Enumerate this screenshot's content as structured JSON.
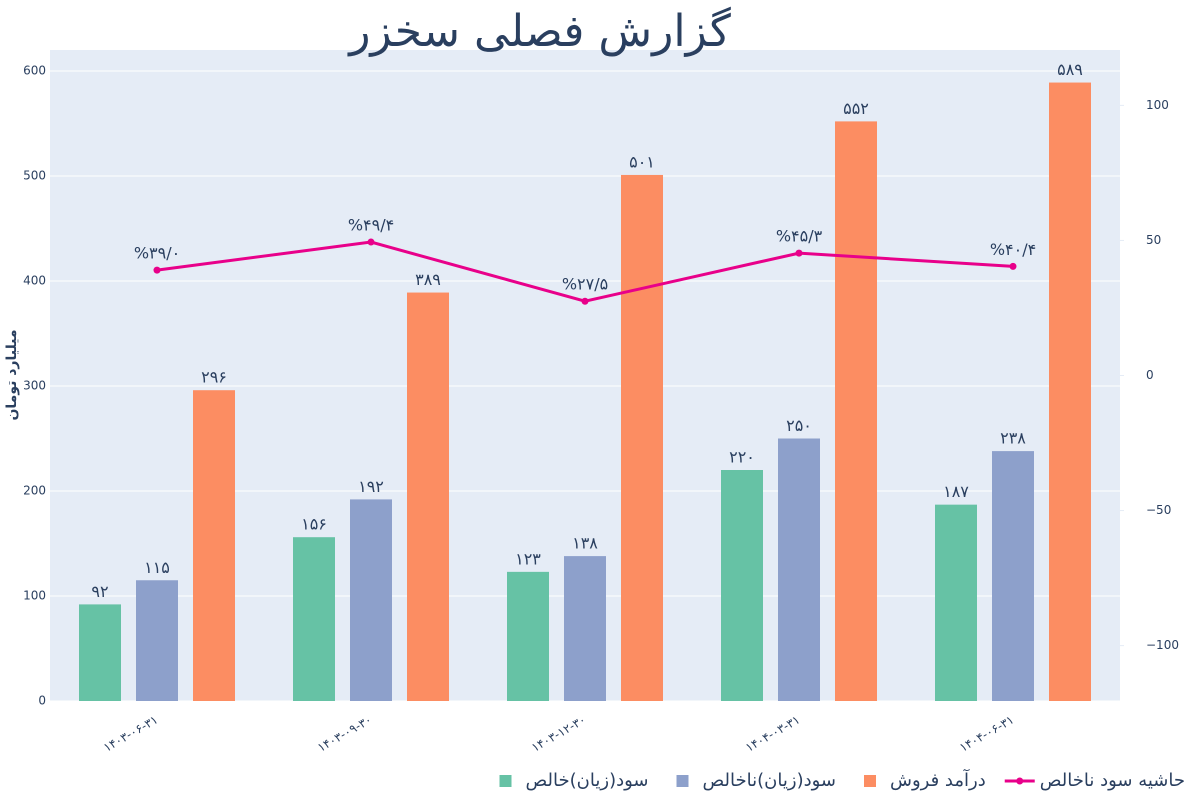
{
  "chart_data": {
    "type": "bar",
    "title": "گزارش فصلی سخزر",
    "y_label": "میلیارد تومان",
    "categories": [
      "۱۴۰۳-۰۶-۳۱",
      "۱۴۰۳-۰۹-۳۰",
      "۱۴۰۳-۱۲-۳۰",
      "۱۴۰۴-۰۳-۳۱",
      "۱۴۰۴-۰۶-۳۱"
    ],
    "series": [
      {
        "name": "سود(زیان)خالص",
        "color": "#66c2a5",
        "type": "bar",
        "values": [
          92,
          156,
          123,
          220,
          187
        ],
        "value_labels": [
          "۹۲",
          "۱۵۶",
          "۱۲۳",
          "۲۲۰",
          "۱۸۷"
        ]
      },
      {
        "name": "سود(زیان)ناخالص",
        "color": "#8da0cb",
        "type": "bar",
        "values": [
          115,
          192,
          138,
          250,
          238
        ],
        "value_labels": [
          "۱۱۵",
          "۱۹۲",
          "۱۳۸",
          "۲۵۰",
          "۲۳۸"
        ]
      },
      {
        "name": "درآمد فروش",
        "color": "#fc8d62",
        "type": "bar",
        "values": [
          296,
          389,
          501,
          552,
          589
        ],
        "value_labels": [
          "۲۹۶",
          "۳۸۹",
          "۵۰۱",
          "۵۵۲",
          "۵۸۹"
        ]
      },
      {
        "name": "حاشیه سود ناخالص",
        "color": "#e8008a",
        "type": "line",
        "axis": "y2",
        "values": [
          39.0,
          49.4,
          27.5,
          45.3,
          40.4
        ],
        "value_labels": [
          "%۳۹/۰",
          "%۴۹/۴",
          "%۲۷/۵",
          "%۴۵/۳",
          "%۴۰/۴"
        ]
      }
    ],
    "ylim": [
      0,
      620
    ],
    "yticks": [
      0,
      100,
      200,
      300,
      400,
      500,
      600
    ],
    "y2lim": [
      -120.5,
      120.5
    ],
    "y2ticks": [
      {
        "value": -100,
        "label": "−100"
      },
      {
        "value": -50,
        "label": "−50"
      },
      0,
      50,
      100
    ],
    "grid": true,
    "legend": "bottom"
  }
}
